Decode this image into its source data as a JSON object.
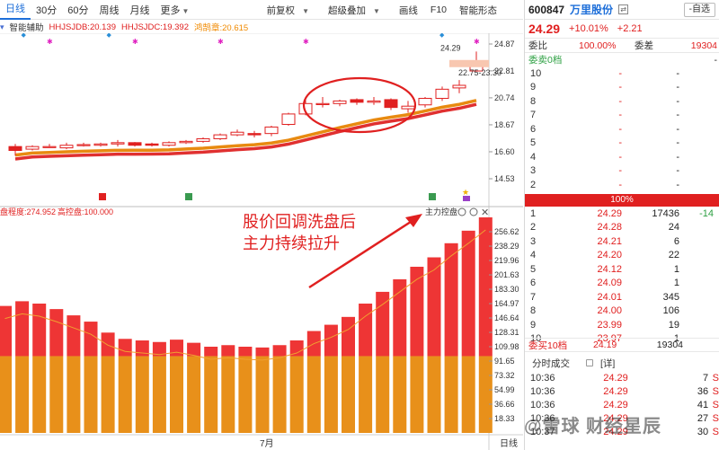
{
  "toolbar": {
    "tabs": [
      "日线",
      "30分",
      "60分",
      "周线",
      "月线",
      "更多"
    ],
    "tools": [
      "前复权",
      "超级叠加",
      "画线",
      "F10",
      "智能形态"
    ]
  },
  "indicator_line": {
    "name": "智能辅助",
    "db": "HHJSJDB:20.139",
    "dc": "HHJSJDC:19.392",
    "drg": "鸿鹄章:20.615",
    "colors": {
      "db": "#e02020",
      "dc": "#e02020",
      "drg": "#f08a00"
    }
  },
  "price_chart": {
    "y_ticks": [
      "24.87",
      "22.81",
      "20.74",
      "18.67",
      "16.60",
      "14.53"
    ],
    "high_label": "24.29",
    "range_label": "22.75-23.30",
    "candles": [
      [
        17.0,
        17.2,
        16.3,
        16.7
      ],
      [
        16.8,
        17.1,
        16.7,
        17.0
      ],
      [
        17.0,
        17.2,
        16.9,
        17.0
      ],
      [
        16.9,
        17.3,
        16.8,
        17.1
      ],
      [
        17.1,
        17.3,
        17.0,
        17.15
      ],
      [
        17.1,
        17.3,
        17.0,
        17.2
      ],
      [
        17.2,
        17.5,
        17.0,
        17.3
      ],
      [
        17.3,
        17.35,
        17.0,
        17.1
      ],
      [
        17.2,
        17.3,
        17.0,
        17.1
      ],
      [
        17.1,
        17.4,
        17.0,
        17.3
      ],
      [
        17.3,
        17.5,
        17.2,
        17.4
      ],
      [
        17.4,
        17.7,
        17.3,
        17.6
      ],
      [
        17.6,
        18.0,
        17.5,
        17.9
      ],
      [
        17.9,
        18.3,
        17.8,
        18.1
      ],
      [
        18.0,
        18.2,
        17.7,
        17.9
      ],
      [
        18.0,
        18.6,
        17.8,
        18.5
      ],
      [
        18.7,
        19.6,
        18.6,
        19.5
      ],
      [
        19.5,
        20.8,
        19.4,
        20.3
      ],
      [
        20.3,
        20.8,
        20.0,
        20.3
      ],
      [
        20.3,
        20.6,
        20.1,
        20.5
      ],
      [
        20.6,
        20.7,
        20.2,
        20.4
      ],
      [
        20.4,
        20.8,
        20.2,
        20.5
      ],
      [
        20.6,
        20.7,
        19.8,
        20.0
      ],
      [
        19.9,
        20.5,
        19.6,
        20.1
      ],
      [
        20.2,
        20.8,
        20.0,
        20.7
      ],
      [
        20.7,
        21.6,
        20.5,
        21.4
      ],
      [
        21.5,
        22.1,
        21.1,
        21.7
      ],
      [
        22.8,
        24.29,
        22.75,
        23.3
      ]
    ]
  },
  "markers": {
    "bottom_icons": [
      "calendar-icon",
      "calendar-icon",
      "calendar-icon",
      "star-icon"
    ]
  },
  "volume_chart": {
    "header_left": "盘程度:274.952",
    "header_right": "高控盘:100.000",
    "title": "主力控盘",
    "y_ticks": [
      "256.62",
      "238.29",
      "219.96",
      "201.63",
      "183.30",
      "164.97",
      "146.64",
      "128.31",
      "109.98",
      "91.65",
      "73.32",
      "54.99",
      "36.66",
      "18.33"
    ],
    "red_values": [
      162,
      168,
      165,
      158,
      150,
      142,
      128,
      120,
      118,
      116,
      119,
      115,
      110,
      112,
      110,
      109,
      112,
      118,
      130,
      138,
      148,
      165,
      180,
      196,
      212,
      224,
      242,
      258,
      275
    ],
    "orange_value": 98,
    "x_label": "7月",
    "period_label": "日线"
  },
  "annotation": {
    "line1": "股价回调洗盘后",
    "line2": "主力持续拉升"
  },
  "right_panel": {
    "code": "600847",
    "name": "万里股份",
    "add_button": "-自选",
    "price": "24.29",
    "change_pct": "+10.01%",
    "change_abs": "+2.21",
    "weibi_label": "委比",
    "weibi_value": "100.00%",
    "weicha_label": "委差",
    "weicha_value": "19304",
    "sell_header": "委卖0档",
    "sell_rows": [
      {
        "lv": "10",
        "p": "-",
        "v": "-"
      },
      {
        "lv": "9",
        "p": "-",
        "v": "-"
      },
      {
        "lv": "8",
        "p": "-",
        "v": "-"
      },
      {
        "lv": "7",
        "p": "-",
        "v": "-"
      },
      {
        "lv": "6",
        "p": "-",
        "v": "-"
      },
      {
        "lv": "5",
        "p": "-",
        "v": "-"
      },
      {
        "lv": "4",
        "p": "-",
        "v": "-"
      },
      {
        "lv": "3",
        "p": "-",
        "v": "-"
      },
      {
        "lv": "2",
        "p": "-",
        "v": "-"
      },
      {
        "lv": "1",
        "p": "-",
        "v": "-"
      }
    ],
    "pct_bar": "100%",
    "buy_rows": [
      {
        "lv": "1",
        "p": "24.29",
        "v": "17436",
        "d": "-14"
      },
      {
        "lv": "2",
        "p": "24.28",
        "v": "24",
        "d": ""
      },
      {
        "lv": "3",
        "p": "24.21",
        "v": "6",
        "d": ""
      },
      {
        "lv": "4",
        "p": "24.20",
        "v": "22",
        "d": ""
      },
      {
        "lv": "5",
        "p": "24.12",
        "v": "1",
        "d": ""
      },
      {
        "lv": "6",
        "p": "24.09",
        "v": "1",
        "d": ""
      },
      {
        "lv": "7",
        "p": "24.01",
        "v": "345",
        "d": ""
      },
      {
        "lv": "8",
        "p": "24.00",
        "v": "106",
        "d": ""
      },
      {
        "lv": "9",
        "p": "23.99",
        "v": "19",
        "d": ""
      },
      {
        "lv": "10",
        "p": "23.97",
        "v": "1",
        "d": ""
      }
    ],
    "buy_header": "委买10档",
    "buy_avg": "24.19",
    "buy_total": "19304",
    "trades_header": "分时成交",
    "trades_detail": "[详]",
    "trades": [
      {
        "t": "10:36",
        "p": "24.29",
        "v": "7",
        "s": "S"
      },
      {
        "t": "10:36",
        "p": "24.29",
        "v": "36",
        "s": "S"
      },
      {
        "t": "10:36",
        "p": "24.29",
        "v": "41",
        "s": "S"
      },
      {
        "t": "10:36",
        "p": "24.29",
        "v": "27",
        "s": "S"
      },
      {
        "t": "10:37",
        "p": "24.29",
        "v": "30",
        "s": "S"
      }
    ],
    "watermark": "@雪球 财经星辰"
  }
}
